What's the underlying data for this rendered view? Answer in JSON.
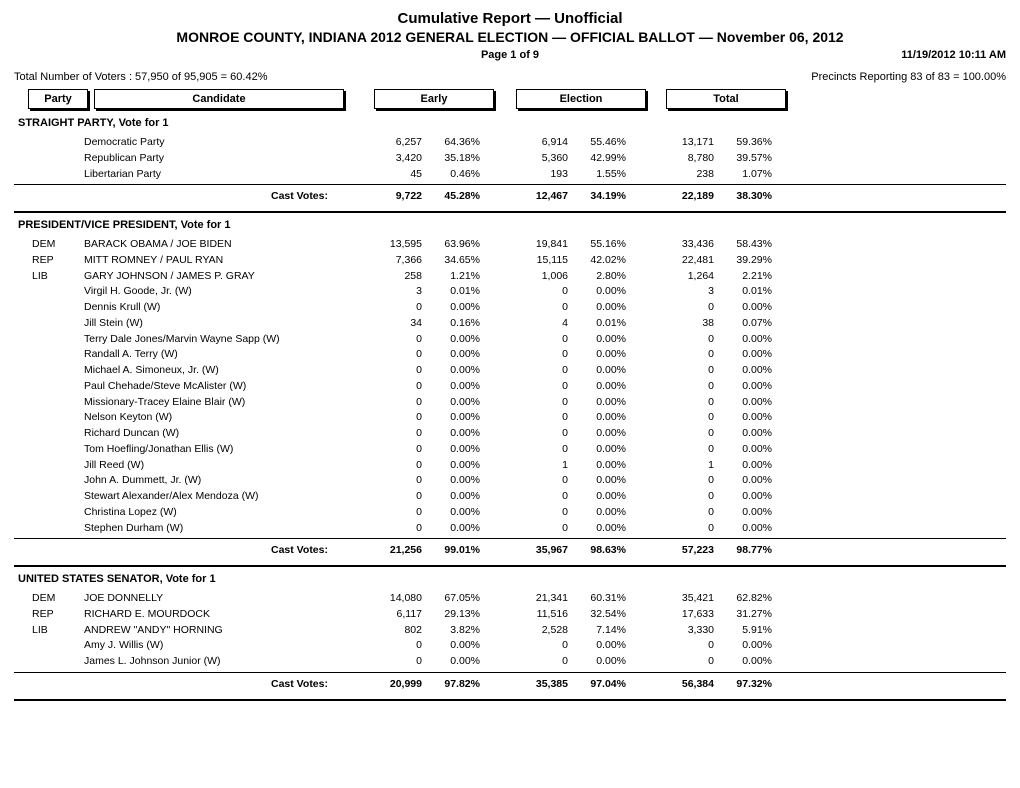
{
  "header": {
    "title": "Cumulative Report  —  Unofficial",
    "subtitle": "MONROE COUNTY, INDIANA 2012 GENERAL ELECTION  —  OFFICIAL BALLOT  —  November 06, 2012",
    "page": "Page 1 of 9",
    "timestamp": "11/19/2012 10:11 AM",
    "voters": "Total Number of Voters : 57,950 of 95,905 = 60.42%",
    "precincts": "Precincts Reporting 83 of 83 = 100.00%"
  },
  "colHeaders": {
    "party": "Party",
    "candidate": "Candidate",
    "early": "Early",
    "election": "Election",
    "total": "Total"
  },
  "castVotesLabel": "Cast Votes:",
  "contests": [
    {
      "title": "STRAIGHT PARTY, Vote for 1",
      "rows": [
        {
          "party": "",
          "cand": "Democratic Party",
          "e_n": "6,257",
          "e_p": "64.36%",
          "el_n": "6,914",
          "el_p": "55.46%",
          "t_n": "13,171",
          "t_p": "59.36%"
        },
        {
          "party": "",
          "cand": "Republican Party",
          "e_n": "3,420",
          "e_p": "35.18%",
          "el_n": "5,360",
          "el_p": "42.99%",
          "t_n": "8,780",
          "t_p": "39.57%"
        },
        {
          "party": "",
          "cand": "Libertarian Party",
          "e_n": "45",
          "e_p": "0.46%",
          "el_n": "193",
          "el_p": "1.55%",
          "t_n": "238",
          "t_p": "1.07%"
        }
      ],
      "cast": {
        "e_n": "9,722",
        "e_p": "45.28%",
        "el_n": "12,467",
        "el_p": "34.19%",
        "t_n": "22,189",
        "t_p": "38.30%"
      }
    },
    {
      "title": "PRESIDENT/VICE PRESIDENT, Vote for 1",
      "rows": [
        {
          "party": "DEM",
          "cand": "BARACK OBAMA / JOE BIDEN",
          "e_n": "13,595",
          "e_p": "63.96%",
          "el_n": "19,841",
          "el_p": "55.16%",
          "t_n": "33,436",
          "t_p": "58.43%"
        },
        {
          "party": "REP",
          "cand": "MITT ROMNEY / PAUL RYAN",
          "e_n": "7,366",
          "e_p": "34.65%",
          "el_n": "15,115",
          "el_p": "42.02%",
          "t_n": "22,481",
          "t_p": "39.29%"
        },
        {
          "party": "LIB",
          "cand": "GARY JOHNSON / JAMES P. GRAY",
          "e_n": "258",
          "e_p": "1.21%",
          "el_n": "1,006",
          "el_p": "2.80%",
          "t_n": "1,264",
          "t_p": "2.21%"
        },
        {
          "party": "",
          "cand": "Virgil H. Goode, Jr. (W)",
          "e_n": "3",
          "e_p": "0.01%",
          "el_n": "0",
          "el_p": "0.00%",
          "t_n": "3",
          "t_p": "0.01%"
        },
        {
          "party": "",
          "cand": "Dennis Krull (W)",
          "e_n": "0",
          "e_p": "0.00%",
          "el_n": "0",
          "el_p": "0.00%",
          "t_n": "0",
          "t_p": "0.00%"
        },
        {
          "party": "",
          "cand": "Jill Stein (W)",
          "e_n": "34",
          "e_p": "0.16%",
          "el_n": "4",
          "el_p": "0.01%",
          "t_n": "38",
          "t_p": "0.07%"
        },
        {
          "party": "",
          "cand": "Terry Dale Jones/Marvin Wayne Sapp (W)",
          "e_n": "0",
          "e_p": "0.00%",
          "el_n": "0",
          "el_p": "0.00%",
          "t_n": "0",
          "t_p": "0.00%"
        },
        {
          "party": "",
          "cand": "Randall A. Terry (W)",
          "e_n": "0",
          "e_p": "0.00%",
          "el_n": "0",
          "el_p": "0.00%",
          "t_n": "0",
          "t_p": "0.00%"
        },
        {
          "party": "",
          "cand": "Michael A. Simoneux, Jr. (W)",
          "e_n": "0",
          "e_p": "0.00%",
          "el_n": "0",
          "el_p": "0.00%",
          "t_n": "0",
          "t_p": "0.00%"
        },
        {
          "party": "",
          "cand": "Paul Chehade/Steve McAlister (W)",
          "e_n": "0",
          "e_p": "0.00%",
          "el_n": "0",
          "el_p": "0.00%",
          "t_n": "0",
          "t_p": "0.00%"
        },
        {
          "party": "",
          "cand": "Missionary-Tracey Elaine Blair (W)",
          "e_n": "0",
          "e_p": "0.00%",
          "el_n": "0",
          "el_p": "0.00%",
          "t_n": "0",
          "t_p": "0.00%"
        },
        {
          "party": "",
          "cand": "Nelson Keyton (W)",
          "e_n": "0",
          "e_p": "0.00%",
          "el_n": "0",
          "el_p": "0.00%",
          "t_n": "0",
          "t_p": "0.00%"
        },
        {
          "party": "",
          "cand": "Richard Duncan (W)",
          "e_n": "0",
          "e_p": "0.00%",
          "el_n": "0",
          "el_p": "0.00%",
          "t_n": "0",
          "t_p": "0.00%"
        },
        {
          "party": "",
          "cand": "Tom Hoefling/Jonathan Ellis (W)",
          "e_n": "0",
          "e_p": "0.00%",
          "el_n": "0",
          "el_p": "0.00%",
          "t_n": "0",
          "t_p": "0.00%"
        },
        {
          "party": "",
          "cand": "Jill Reed (W)",
          "e_n": "0",
          "e_p": "0.00%",
          "el_n": "1",
          "el_p": "0.00%",
          "t_n": "1",
          "t_p": "0.00%"
        },
        {
          "party": "",
          "cand": "John A. Dummett, Jr. (W)",
          "e_n": "0",
          "e_p": "0.00%",
          "el_n": "0",
          "el_p": "0.00%",
          "t_n": "0",
          "t_p": "0.00%"
        },
        {
          "party": "",
          "cand": "Stewart Alexander/Alex Mendoza (W)",
          "e_n": "0",
          "e_p": "0.00%",
          "el_n": "0",
          "el_p": "0.00%",
          "t_n": "0",
          "t_p": "0.00%"
        },
        {
          "party": "",
          "cand": "Christina Lopez (W)",
          "e_n": "0",
          "e_p": "0.00%",
          "el_n": "0",
          "el_p": "0.00%",
          "t_n": "0",
          "t_p": "0.00%"
        },
        {
          "party": "",
          "cand": "Stephen Durham (W)",
          "e_n": "0",
          "e_p": "0.00%",
          "el_n": "0",
          "el_p": "0.00%",
          "t_n": "0",
          "t_p": "0.00%"
        }
      ],
      "cast": {
        "e_n": "21,256",
        "e_p": "99.01%",
        "el_n": "35,967",
        "el_p": "98.63%",
        "t_n": "57,223",
        "t_p": "98.77%"
      }
    },
    {
      "title": "UNITED STATES SENATOR, Vote for 1",
      "rows": [
        {
          "party": "DEM",
          "cand": "JOE DONNELLY",
          "e_n": "14,080",
          "e_p": "67.05%",
          "el_n": "21,341",
          "el_p": "60.31%",
          "t_n": "35,421",
          "t_p": "62.82%"
        },
        {
          "party": "REP",
          "cand": "RICHARD E. MOURDOCK",
          "e_n": "6,117",
          "e_p": "29.13%",
          "el_n": "11,516",
          "el_p": "32.54%",
          "t_n": "17,633",
          "t_p": "31.27%"
        },
        {
          "party": "LIB",
          "cand": "ANDREW \"ANDY\" HORNING",
          "e_n": "802",
          "e_p": "3.82%",
          "el_n": "2,528",
          "el_p": "7.14%",
          "t_n": "3,330",
          "t_p": "5.91%"
        },
        {
          "party": "",
          "cand": "Amy J. Willis (W)",
          "e_n": "0",
          "e_p": "0.00%",
          "el_n": "0",
          "el_p": "0.00%",
          "t_n": "0",
          "t_p": "0.00%"
        },
        {
          "party": "",
          "cand": "James L. Johnson Junior (W)",
          "e_n": "0",
          "e_p": "0.00%",
          "el_n": "0",
          "el_p": "0.00%",
          "t_n": "0",
          "t_p": "0.00%"
        }
      ],
      "cast": {
        "e_n": "20,999",
        "e_p": "97.82%",
        "el_n": "35,385",
        "el_p": "97.04%",
        "t_n": "56,384",
        "t_p": "97.32%"
      }
    }
  ]
}
